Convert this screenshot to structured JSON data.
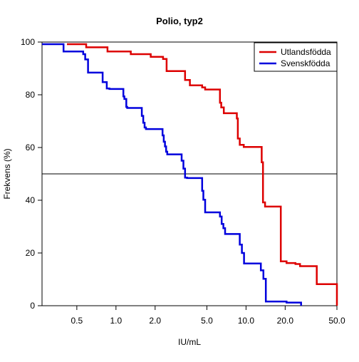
{
  "chart_data": {
    "type": "line",
    "title": "Polio, typ2",
    "xlabel": "IU/mL",
    "ylabel": "Frekvens (%)",
    "x_scale": "log",
    "xlim": [
      0.27,
      50
    ],
    "ylim": [
      0,
      100
    ],
    "x_ticks": [
      0.5,
      1.0,
      2.0,
      5.0,
      10.0,
      20.0,
      50.0
    ],
    "x_tick_labels": [
      "0.5",
      "1.0",
      "2.0",
      "5.0",
      "10.0",
      "20.0",
      "50.0"
    ],
    "y_ticks": [
      0,
      20,
      40,
      60,
      80,
      100
    ],
    "y_tick_labels": [
      "0",
      "20",
      "40",
      "60",
      "80",
      "100"
    ],
    "reference_line_y": 50,
    "grid": false,
    "legend_position": "top-right",
    "series": [
      {
        "name": "Utlandsfödda",
        "color": "#dd0000",
        "step": true,
        "x": [
          0.42,
          0.59,
          0.86,
          1.3,
          1.85,
          2.3,
          2.45,
          3.4,
          3.7,
          4.6,
          4.85,
          6.3,
          6.45,
          6.75,
          8.5,
          8.65,
          8.95,
          9.6,
          13.2,
          13.5,
          14.0,
          18.5,
          20.5,
          24.0,
          26.0,
          35.0,
          50.0
        ],
        "y": [
          99.2,
          98.0,
          96.4,
          95.4,
          94.4,
          93.6,
          89.0,
          85.6,
          83.6,
          82.8,
          82.0,
          77.0,
          75.2,
          73.0,
          71.0,
          63.4,
          61.0,
          60.2,
          54.4,
          39.2,
          37.6,
          16.8,
          16.2,
          15.8,
          15.0,
          8.2,
          7.0
        ]
      },
      {
        "name": "Svenskfödda",
        "color": "#0000dd",
        "step": true,
        "x": [
          0.27,
          0.395,
          0.56,
          0.58,
          0.61,
          0.79,
          0.85,
          0.89,
          1.14,
          1.16,
          1.2,
          1.22,
          1.58,
          1.62,
          1.66,
          1.7,
          2.28,
          2.33,
          2.38,
          2.43,
          2.48,
          3.2,
          3.3,
          3.4,
          3.52,
          4.6,
          4.7,
          4.85,
          6.3,
          6.5,
          6.7,
          6.9,
          8.95,
          9.3,
          9.65,
          13.0,
          13.6,
          14.2,
          20.5,
          26.5
        ],
        "y": [
          99.2,
          96.4,
          95.4,
          93.4,
          88.4,
          84.8,
          82.4,
          82.2,
          79.4,
          78.4,
          75.4,
          75.0,
          72.0,
          69.4,
          67.6,
          67.0,
          64.6,
          62.2,
          60.4,
          58.4,
          57.4,
          55.0,
          52.0,
          48.6,
          48.4,
          43.6,
          40.2,
          35.4,
          33.8,
          31.0,
          29.4,
          27.2,
          23.2,
          20.0,
          16.0,
          13.4,
          10.2,
          1.6,
          1.2,
          0.0
        ]
      }
    ]
  }
}
